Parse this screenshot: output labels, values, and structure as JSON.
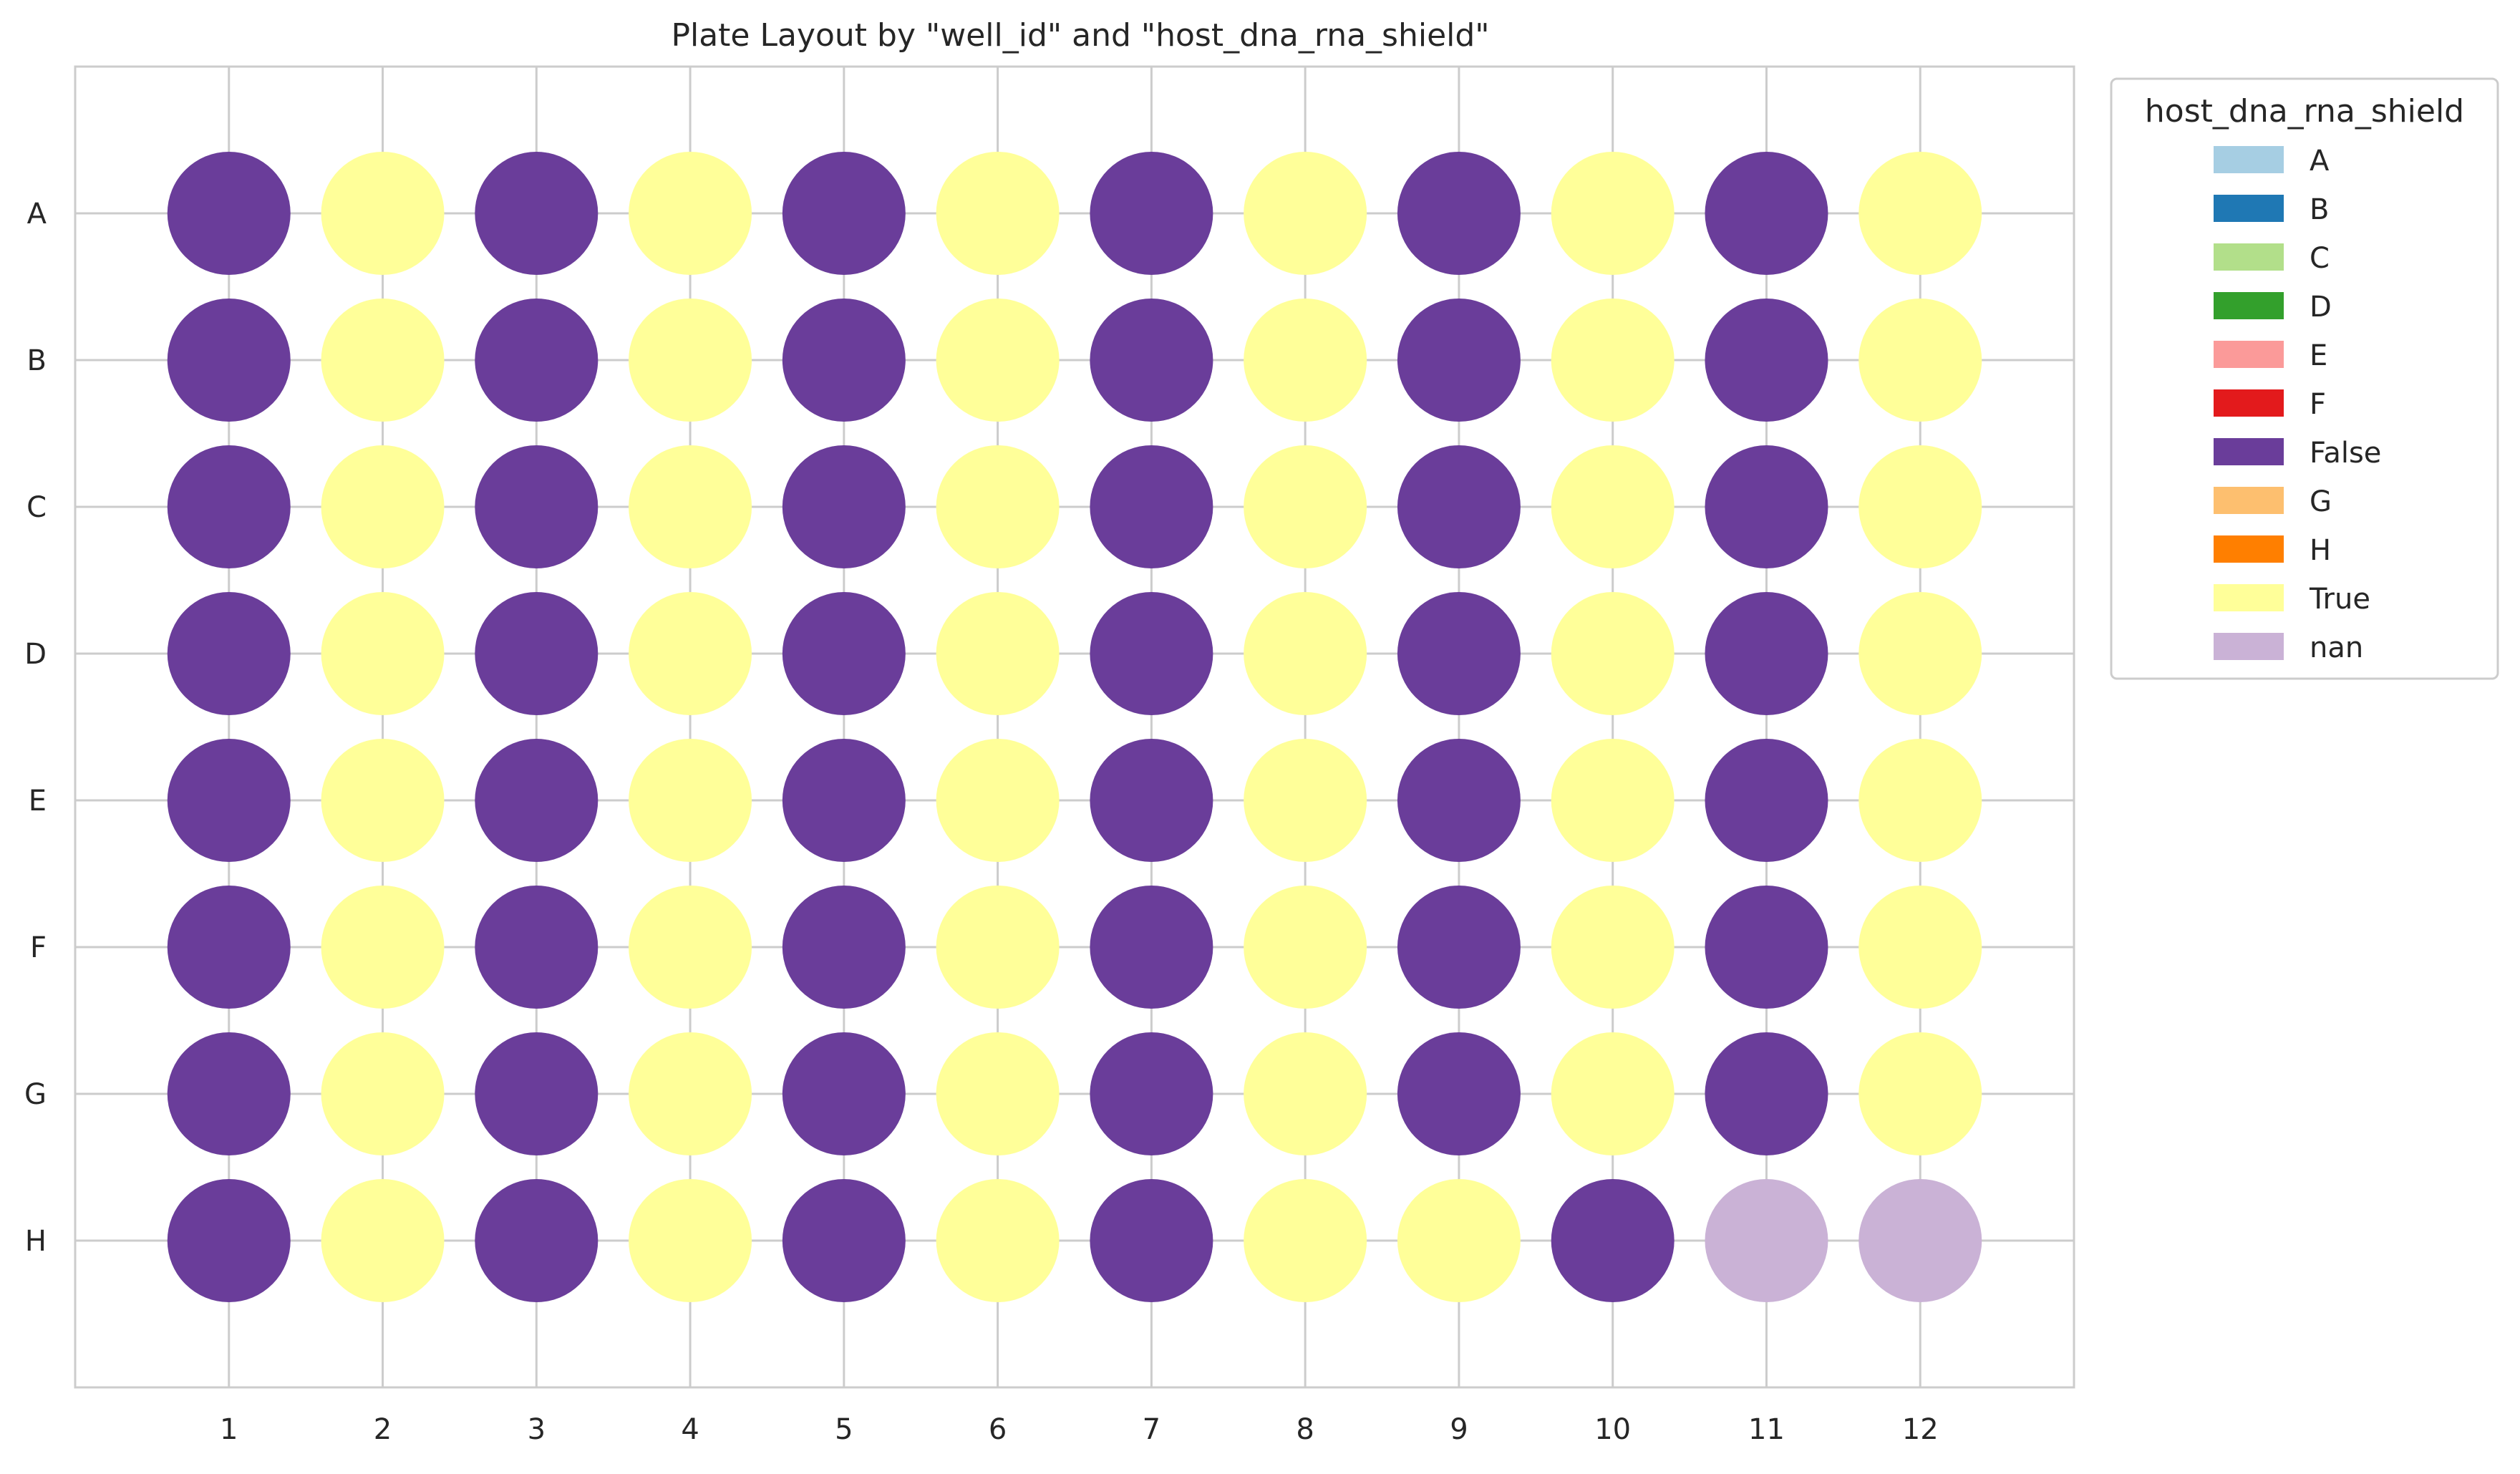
{
  "chart_data": {
    "type": "scatter",
    "title": "Plate Layout by \"well_id\" and \"host_dna_rna_shield\"",
    "xlabel": "",
    "ylabel": "",
    "columns": [
      "1",
      "2",
      "3",
      "4",
      "5",
      "6",
      "7",
      "8",
      "9",
      "10",
      "11",
      "12"
    ],
    "rows": [
      "A",
      "B",
      "C",
      "D",
      "E",
      "F",
      "G",
      "H"
    ],
    "xlim": [
      0,
      13
    ],
    "ylim": [
      -1,
      8
    ],
    "grid": true,
    "legend": {
      "title": "host_dna_rna_shield",
      "placement": "outside-right",
      "entries": [
        {
          "label": "A",
          "color": "#a6cee3"
        },
        {
          "label": "B",
          "color": "#1f78b4"
        },
        {
          "label": "C",
          "color": "#b2df8a"
        },
        {
          "label": "D",
          "color": "#33a02c"
        },
        {
          "label": "E",
          "color": "#fb9a99"
        },
        {
          "label": "F",
          "color": "#e31a1c"
        },
        {
          "label": "False",
          "color": "#6a3d9a"
        },
        {
          "label": "G",
          "color": "#fdbf6f"
        },
        {
          "label": "H",
          "color": "#ff7f00"
        },
        {
          "label": "True",
          "color": "#ffff99"
        },
        {
          "label": "nan",
          "color": "#cab2d6"
        }
      ]
    },
    "wells": [
      [
        "False",
        "True",
        "False",
        "True",
        "False",
        "True",
        "False",
        "True",
        "False",
        "True",
        "False",
        "True"
      ],
      [
        "False",
        "True",
        "False",
        "True",
        "False",
        "True",
        "False",
        "True",
        "False",
        "True",
        "False",
        "True"
      ],
      [
        "False",
        "True",
        "False",
        "True",
        "False",
        "True",
        "False",
        "True",
        "False",
        "True",
        "False",
        "True"
      ],
      [
        "False",
        "True",
        "False",
        "True",
        "False",
        "True",
        "False",
        "True",
        "False",
        "True",
        "False",
        "True"
      ],
      [
        "False",
        "True",
        "False",
        "True",
        "False",
        "True",
        "False",
        "True",
        "False",
        "True",
        "False",
        "True"
      ],
      [
        "False",
        "True",
        "False",
        "True",
        "False",
        "True",
        "False",
        "True",
        "False",
        "True",
        "False",
        "True"
      ],
      [
        "False",
        "True",
        "False",
        "True",
        "False",
        "True",
        "False",
        "True",
        "False",
        "True",
        "False",
        "True"
      ],
      [
        "False",
        "True",
        "False",
        "True",
        "False",
        "True",
        "False",
        "True",
        "True",
        "False",
        "nan",
        "nan"
      ]
    ]
  }
}
